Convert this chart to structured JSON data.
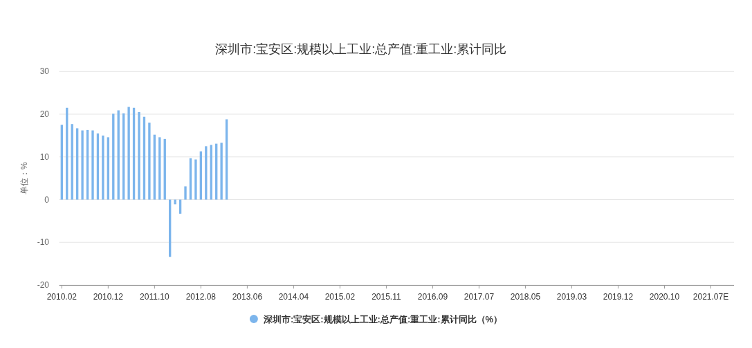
{
  "chart_data": {
    "type": "bar",
    "title": "深圳市:宝安区:规模以上工业:总产值:重工业:累计同比",
    "ylabel": "单位：%",
    "categories": [
      "2010.02",
      null,
      null,
      null,
      null,
      null,
      null,
      null,
      null,
      "2010.12",
      null,
      null,
      null,
      null,
      null,
      null,
      null,
      null,
      "2011.10",
      null,
      null,
      null,
      null,
      null,
      null,
      null,
      null,
      "2012.08",
      null,
      null,
      null,
      null,
      null,
      null,
      null,
      null,
      "2013.06",
      null,
      null,
      null,
      null,
      null,
      null,
      null,
      null,
      "2014.04",
      null,
      null,
      null,
      null,
      null,
      null,
      null,
      null,
      "2015.02",
      null,
      null,
      null,
      null,
      null,
      null,
      null,
      null,
      "2015.11",
      null,
      null,
      null,
      null,
      null,
      null,
      null,
      null,
      "2016.09",
      null,
      null,
      null,
      null,
      null,
      null,
      null,
      null,
      "2017.07",
      null,
      null,
      null,
      null,
      null,
      null,
      null,
      null,
      "2018.05",
      null,
      null,
      null,
      null,
      null,
      null,
      null,
      null,
      "2019.03",
      null,
      null,
      null,
      null,
      null,
      null,
      null,
      null,
      "2019.12",
      null,
      null,
      null,
      null,
      null,
      null,
      null,
      null,
      "2020.10",
      null,
      null,
      null,
      null,
      null,
      null,
      null,
      null,
      "2021.07E",
      null,
      null,
      null,
      null
    ],
    "series": [
      {
        "name": "深圳市:宝安区:规模以上工业:总产值:重工业:累计同比（%）",
        "color": "#7cb5ec",
        "values": [
          17.5,
          21.5,
          17.7,
          16.7,
          16.2,
          16.3,
          16.2,
          15.5,
          15.0,
          14.6,
          20.1,
          20.9,
          20.2,
          21.7,
          21.5,
          20.5,
          19.4,
          18.0,
          15.2,
          14.6,
          14.2,
          -13.4,
          -1.1,
          -3.3,
          3.1,
          9.7,
          9.4,
          11.3,
          12.5,
          12.8,
          13.1,
          13.3,
          18.8,
          null,
          null,
          null,
          null,
          null,
          null,
          null,
          null,
          null,
          null,
          null,
          null,
          null,
          null,
          null,
          null,
          null,
          null,
          null,
          null,
          null,
          null,
          null,
          null,
          null,
          null,
          null,
          null,
          null,
          null,
          null,
          null,
          null,
          null,
          null,
          null,
          null,
          null,
          null,
          null,
          null,
          null,
          null,
          null,
          null,
          null,
          null,
          null,
          null,
          null,
          null,
          null,
          null,
          null,
          null,
          null,
          null,
          null,
          null,
          null,
          null,
          null,
          null,
          null,
          null,
          null,
          null,
          null,
          null,
          null,
          null,
          null,
          null,
          null,
          null,
          null,
          null,
          null,
          null,
          null,
          null,
          null,
          null,
          null,
          null,
          null,
          null,
          null,
          null,
          null,
          null,
          null,
          null,
          null,
          null,
          null,
          null,
          null
        ]
      }
    ],
    "ylim": [
      -20,
      30
    ],
    "yticks": [
      -20,
      -10,
      0,
      10,
      20,
      30
    ],
    "grid": "y",
    "legend": "bottom"
  }
}
